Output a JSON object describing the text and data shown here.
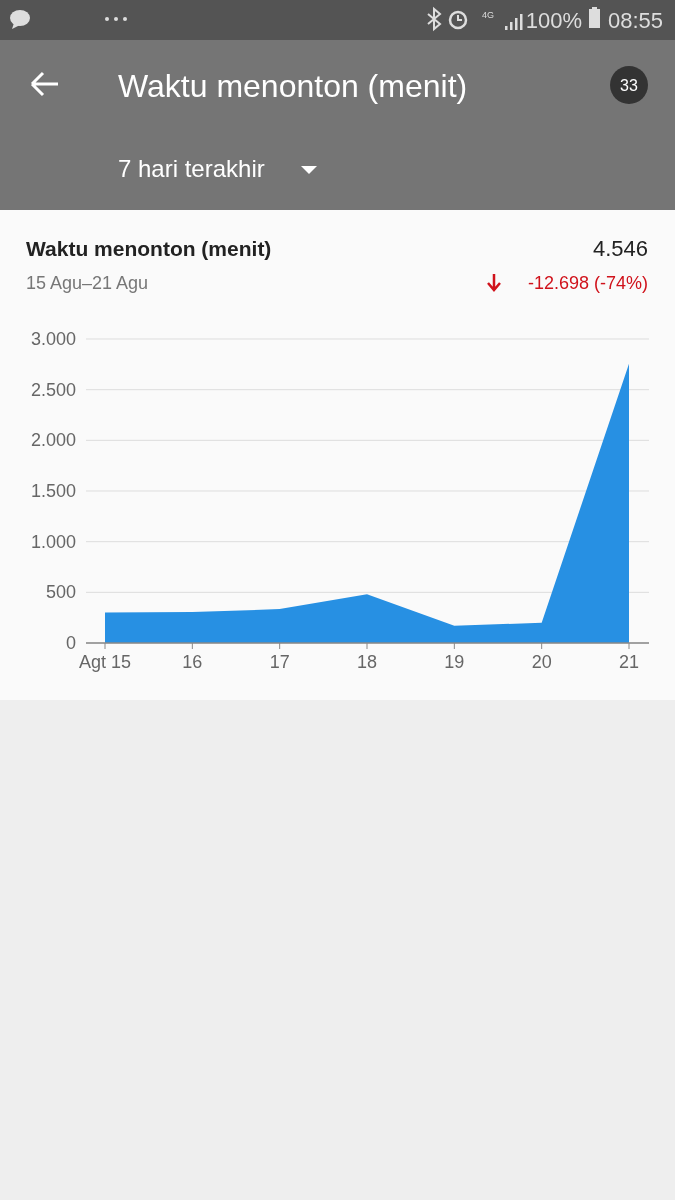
{
  "chart_data": {
    "type": "area",
    "title": "Waktu menonton (menit)",
    "subtitle": "15 Agu–21 Agu",
    "annotations": [
      "08:55",
      "100%",
      "4G",
      "Waktu menonton (menit)",
      "33",
      "7 hari terakhir",
      "4.546",
      "-12.698 (-74%)"
    ],
    "categories": [
      "Agt 15",
      "16",
      "17",
      "18",
      "19",
      "20",
      "21"
    ],
    "series": [
      {
        "color": "#2790e3",
        "values": [
          300,
          305,
          335,
          480,
          170,
          200,
          2756
        ]
      }
    ],
    "ylim": [
      0,
      3000
    ],
    "yticks": [
      0,
      500,
      {
        "value": 1000,
        "label": "1.000"
      },
      {
        "value": 1500,
        "label": "1.500"
      },
      {
        "value": 2000,
        "label": "2.000"
      },
      {
        "value": 2500,
        "label": "2.500"
      },
      {
        "value": 3000,
        "label": "3.000"
      }
    ],
    "grid": "y"
  }
}
